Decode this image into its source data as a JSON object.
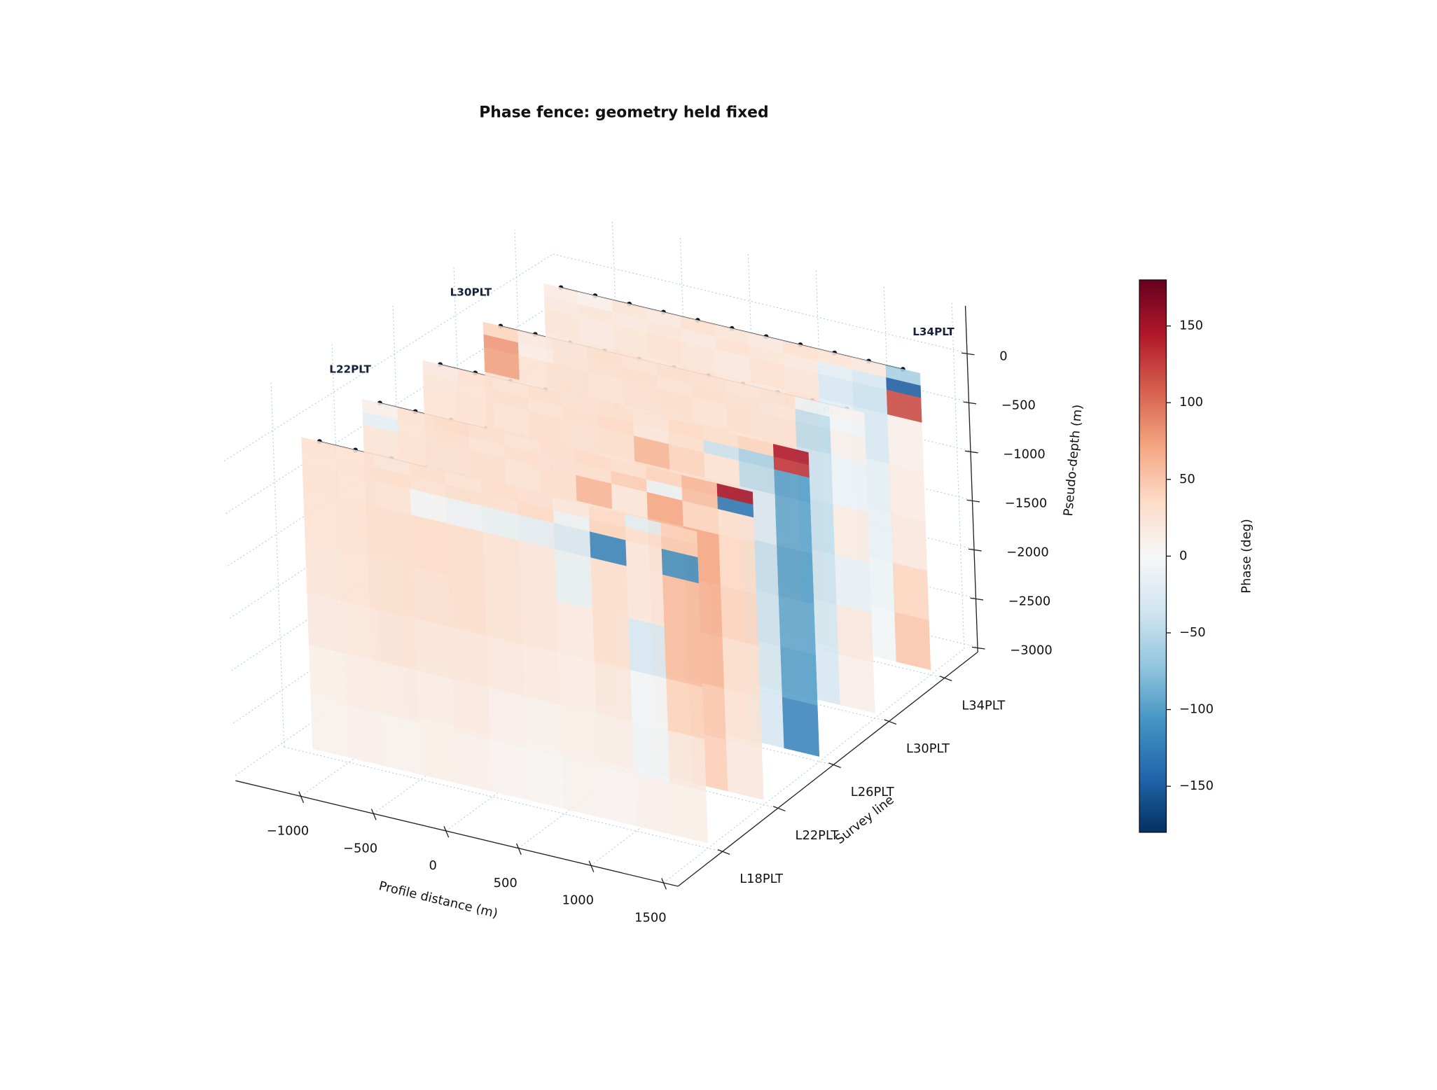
{
  "chart_data": {
    "type": "fence3d",
    "title": "Phase fence: geometry held fixed",
    "x_label": "Profile distance (m)",
    "y_label": "Survey line",
    "z_label": "Pseudo-depth (m)",
    "colorbar_label": "Phase (deg)",
    "colormap": "RdBu_r",
    "clim": [
      -180,
      180
    ],
    "cticks": [
      {
        "value": -150,
        "label": "−150"
      },
      {
        "value": -100,
        "label": "−100"
      },
      {
        "value": -50,
        "label": "−50"
      },
      0,
      50,
      100,
      150
    ],
    "categories": [
      "L18PLT",
      "L22PLT",
      "L26PLT",
      "L30PLT",
      "L34PLT"
    ],
    "xlim": [
      -1450,
      1600
    ],
    "xticks": [
      {
        "value": -1000,
        "label": "−1000"
      },
      {
        "value": -500,
        "label": "−500"
      },
      0,
      500,
      1000,
      1500
    ],
    "zlim": [
      -3050,
      480
    ],
    "zticks": [
      0,
      {
        "value": -500,
        "label": "−500"
      },
      {
        "value": -1000,
        "label": "−1000"
      },
      {
        "value": -1500,
        "label": "−1500"
      },
      {
        "value": -2000,
        "label": "−2000"
      },
      {
        "value": -2500,
        "label": "−2500"
      },
      {
        "value": -3000,
        "label": "−3000"
      }
    ],
    "grid": true,
    "station_color": "#111827",
    "x": [
      -1125,
      -875,
      -625,
      -375,
      -125,
      125,
      375,
      625,
      875,
      1125,
      1375
    ],
    "z_edges": [
      0,
      -125,
      -250,
      -500,
      -1000,
      -1500,
      -2000,
      -2500,
      -3000
    ],
    "series": [
      {
        "values": [
          [
            30,
            28,
            22,
            30,
            25,
            32,
            28,
            20,
            35,
            -20,
            40
          ],
          [
            28,
            30,
            32,
            26,
            30,
            28,
            35,
            -10,
            40,
            30,
            45
          ],
          [
            30,
            28,
            25,
            -5,
            -10,
            -15,
            -20,
            -30,
            -120,
            20,
            -110
          ],
          [
            28,
            30,
            30,
            32,
            30,
            25,
            20,
            -15,
            30,
            20,
            55
          ],
          [
            25,
            28,
            30,
            28,
            30,
            25,
            20,
            15,
            30,
            -30,
            55
          ],
          [
            20,
            22,
            25,
            20,
            22,
            18,
            15,
            12,
            20,
            -5,
            40
          ],
          [
            12,
            15,
            14,
            12,
            15,
            10,
            8,
            10,
            12,
            -8,
            20
          ],
          [
            8,
            10,
            8,
            12,
            10,
            6,
            5,
            8,
            6,
            10,
            12
          ]
        ]
      },
      {
        "values": [
          [
            10,
            30,
            35,
            30,
            25,
            30,
            35,
            30,
            40,
            60,
            150
          ],
          [
            -20,
            28,
            30,
            25,
            30,
            28,
            30,
            45,
            -10,
            55,
            -130
          ],
          [
            25,
            30,
            28,
            30,
            25,
            30,
            60,
            20,
            70,
            40,
            30
          ],
          [
            30,
            28,
            32,
            30,
            30,
            28,
            25,
            30,
            60,
            70,
            35
          ],
          [
            25,
            28,
            30,
            25,
            28,
            30,
            25,
            30,
            50,
            65,
            40
          ],
          [
            22,
            25,
            28,
            25,
            22,
            25,
            20,
            -10,
            45,
            60,
            30
          ],
          [
            20,
            22,
            18,
            20,
            22,
            18,
            15,
            -5,
            30,
            50,
            25
          ],
          [
            15,
            18,
            20,
            18,
            15,
            20,
            12,
            10,
            25,
            45,
            20
          ]
        ]
      },
      {
        "values": [
          [
            20,
            30,
            25,
            30,
            28,
            30,
            25,
            35,
            30,
            40,
            145
          ],
          [
            25,
            28,
            30,
            25,
            30,
            35,
            20,
            30,
            -40,
            -60,
            130
          ],
          [
            28,
            30,
            25,
            30,
            28,
            30,
            60,
            40,
            25,
            -50,
            -100
          ],
          [
            25,
            28,
            30,
            32,
            30,
            25,
            35,
            30,
            30,
            -30,
            -95
          ],
          [
            22,
            25,
            28,
            30,
            25,
            28,
            30,
            25,
            35,
            -45,
            -100
          ],
          [
            20,
            22,
            25,
            28,
            22,
            25,
            28,
            20,
            30,
            -40,
            -95
          ],
          [
            18,
            20,
            22,
            25,
            20,
            22,
            25,
            18,
            28,
            -35,
            -100
          ],
          [
            15,
            18,
            20,
            22,
            18,
            20,
            22,
            15,
            25,
            -30,
            -120
          ]
        ]
      },
      {
        "values": [
          [
            40,
            20,
            25,
            30,
            25,
            30,
            28,
            25,
            30,
            -10,
            5
          ],
          [
            80,
            15,
            25,
            28,
            30,
            25,
            30,
            28,
            25,
            -45,
            -5
          ],
          [
            75,
            28,
            30,
            25,
            28,
            30,
            25,
            30,
            28,
            -50,
            10
          ],
          [
            30,
            25,
            28,
            30,
            25,
            28,
            30,
            25,
            30,
            -40,
            -10
          ],
          [
            25,
            28,
            30,
            25,
            28,
            25,
            28,
            30,
            25,
            -45,
            15
          ],
          [
            28,
            25,
            28,
            30,
            25,
            28,
            25,
            28,
            30,
            -40,
            -15
          ],
          [
            25,
            28,
            25,
            28,
            30,
            25,
            28,
            25,
            28,
            -35,
            20
          ],
          [
            22,
            25,
            28,
            25,
            28,
            30,
            25,
            28,
            25,
            -30,
            10
          ]
        ]
      },
      {
        "values": [
          [
            15,
            10,
            25,
            20,
            30,
            25,
            20,
            30,
            25,
            20,
            -60
          ],
          [
            20,
            25,
            20,
            25,
            20,
            30,
            25,
            20,
            -20,
            -30,
            -150
          ],
          [
            25,
            20,
            25,
            30,
            25,
            20,
            30,
            25,
            -30,
            -40,
            120
          ],
          [
            20,
            25,
            30,
            25,
            30,
            25,
            20,
            30,
            -20,
            -30,
            10
          ],
          [
            25,
            30,
            25,
            20,
            25,
            30,
            25,
            20,
            -10,
            -20,
            15
          ],
          [
            20,
            25,
            30,
            25,
            20,
            25,
            30,
            25,
            -5,
            -15,
            20
          ],
          [
            25,
            20,
            25,
            30,
            25,
            20,
            25,
            30,
            5,
            -10,
            40
          ],
          [
            20,
            25,
            20,
            25,
            30,
            25,
            20,
            25,
            10,
            -5,
            50
          ]
        ]
      }
    ]
  }
}
